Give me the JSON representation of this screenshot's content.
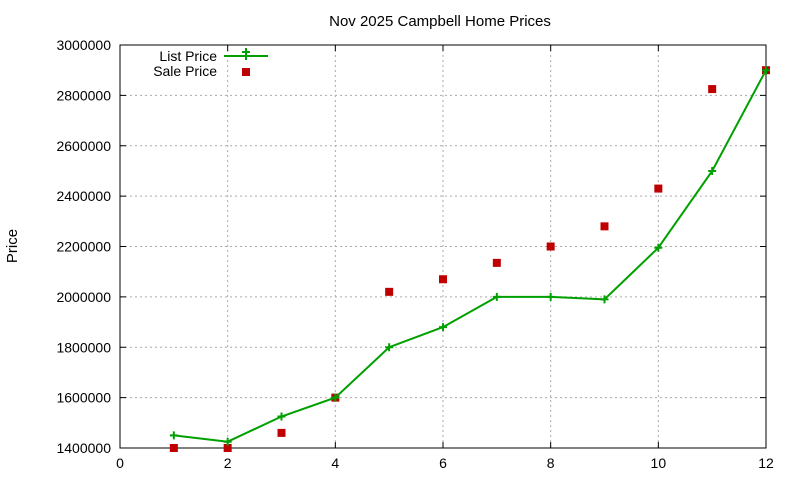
{
  "chart_data": {
    "type": "line",
    "title": "Nov 2025 Campbell Home Prices",
    "xlabel": "",
    "ylabel": "Price",
    "xlim": [
      0,
      12
    ],
    "ylim": [
      1400000,
      3000000
    ],
    "x_ticks": [
      0,
      2,
      4,
      6,
      8,
      10,
      12
    ],
    "y_ticks": [
      1400000,
      1600000,
      1800000,
      2000000,
      2200000,
      2400000,
      2600000,
      2800000,
      3000000
    ],
    "grid": true,
    "legend_position": "top-left",
    "series": [
      {
        "name": "List Price",
        "style": "line+plus-markers",
        "color": "#00a000",
        "x": [
          1,
          2,
          3,
          4,
          5,
          6,
          7,
          8,
          9,
          10,
          11,
          12
        ],
        "values": [
          1450000,
          1425000,
          1525000,
          1600000,
          1800000,
          1880000,
          2000000,
          2000000,
          1990000,
          2195000,
          2500000,
          2900000
        ]
      },
      {
        "name": "Sale Price",
        "style": "square-markers",
        "color": "#c00000",
        "x": [
          1,
          2,
          3,
          4,
          5,
          6,
          7,
          8,
          9,
          10,
          11,
          12
        ],
        "values": [
          1400000,
          1400000,
          1460000,
          1600000,
          2020000,
          2070000,
          2135000,
          2200000,
          2280000,
          2430000,
          2825000,
          2900000
        ]
      }
    ]
  }
}
